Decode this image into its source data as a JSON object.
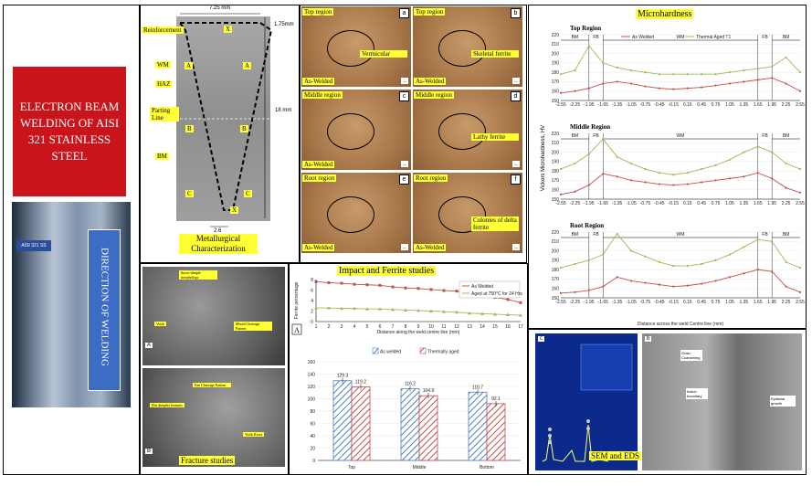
{
  "title_box": {
    "text": "ELECTRON BEAM WELDING OF AISI 321 STAINLESS STEEL",
    "color": "#c8141a"
  },
  "weld_photo": {
    "tag": "AISI 321 SS",
    "arrow_label": "DIRECTION OF WELDING"
  },
  "macro": {
    "width_dim": "7.25 mm",
    "depth_top": "1.75mm",
    "depth_total": "18 mm",
    "root_dim": "2.6",
    "labels": {
      "reinforcement": "Reinforcement",
      "wm": "WM",
      "haz": "HAZ",
      "parting": "Parting Line",
      "bm": "BM"
    },
    "markers": [
      "A",
      "B",
      "C",
      "X"
    ]
  },
  "metallurgical": {
    "caption": "Metallurgical Characterization",
    "panels": [
      {
        "letter": "a",
        "region": "Top region",
        "feature": "Vermicular",
        "state": "As-Welded"
      },
      {
        "letter": "b",
        "region": "Top region",
        "feature": "Skeletal ferrite",
        "state": "As-Welded"
      },
      {
        "letter": "c",
        "region": "Middle region",
        "feature": "",
        "state": "As-Welded"
      },
      {
        "letter": "d",
        "region": "Middle region",
        "feature": "Lathy ferrite",
        "state": ""
      },
      {
        "letter": "e",
        "region": "Root region",
        "feature": "",
        "state": "As-Welded"
      },
      {
        "letter": "f",
        "region": "Root region",
        "feature": "Colonies of delta ferrite",
        "state": "As-Welded"
      }
    ]
  },
  "microhardness": {
    "title": "Microhardness",
    "ylabel": "Vickers Microhardness, HV",
    "xlabel": "Distance across the weld Centre line (mm)",
    "legend": [
      "As Welded",
      "Thermal Aged T1"
    ],
    "colors": {
      "as_welded": "#c0504d",
      "aged": "#9bbb59"
    },
    "zones": {
      "bm": "BM",
      "fb": "FB",
      "wm": "WM"
    }
  },
  "impact": {
    "title": "Impact and Ferrite studies",
    "legend": [
      "As Welded",
      "Aged at 750°C for 24 Hrs"
    ],
    "ylabel": "Ferrite percentage",
    "xlabel": "Distance along the weld centre line (mm)",
    "panel_letter": "A"
  },
  "fracture": {
    "caption": "Fracture studies",
    "labels": [
      "Sucro-dimple morphology",
      "Voids",
      "Mixed Cleavage Pattern",
      "Fan Cleavage Pattern",
      "Flat dimples features",
      "Voids Rows"
    ],
    "letters": [
      "A",
      "B"
    ]
  },
  "sem": {
    "caption": "SEM and EDS",
    "labels": [
      "Grain Coarsening",
      "fusion boundary",
      "Epitaxial growth"
    ],
    "letters": [
      "c",
      "b"
    ]
  },
  "chart_data": [
    {
      "type": "bar",
      "categories": [
        "Top",
        "Middle",
        "Bottom"
      ],
      "series": [
        {
          "name": "As welded",
          "values": [
            129.3,
            116.2,
            110.7
          ]
        },
        {
          "name": "Thermally aged",
          "values": [
            119.2,
            104.9,
            92.1
          ]
        }
      ],
      "ylim": [
        0,
        160
      ],
      "yticks": [
        0,
        20,
        40,
        60,
        80,
        100,
        120,
        140,
        160
      ]
    },
    {
      "type": "line",
      "x": [
        1,
        2,
        3,
        4,
        5,
        6,
        7,
        8,
        9,
        10,
        11,
        12,
        13,
        14,
        15,
        16,
        17
      ],
      "series": [
        {
          "name": "As Welded",
          "values": [
            7.6,
            7.4,
            7.3,
            7.1,
            7.0,
            6.9,
            6.6,
            6.4,
            6.3,
            6.1,
            5.9,
            5.8,
            5.4,
            5.0,
            4.6,
            4.2,
            3.6
          ]
        },
        {
          "name": "Aged at 750°C for 24 Hrs",
          "values": [
            2.6,
            2.6,
            2.5,
            2.5,
            2.4,
            2.4,
            2.3,
            2.2,
            2.1,
            2.0,
            1.9,
            1.8,
            1.6,
            1.5,
            1.4,
            1.3,
            1.2
          ]
        }
      ],
      "ylim": [
        0,
        8
      ]
    },
    {
      "type": "line",
      "panel": "Top Region",
      "x": [
        -2.55,
        -2.25,
        -1.95,
        -1.65,
        -1.35,
        -1.05,
        -0.75,
        -0.45,
        -0.15,
        0.15,
        0.45,
        0.75,
        1.05,
        1.35,
        1.65,
        1.95,
        2.25,
        2.55
      ],
      "xticks": [
        "-2.55",
        "-2.25",
        "-1.95",
        "-1.65",
        "-1.35",
        "-1.05",
        "-0.75",
        "-0.45",
        "-0.15",
        "0.15",
        "0.45",
        "0.75",
        "1.05",
        "1.35",
        "1.65",
        "1.95",
        "2.25",
        "2.55"
      ],
      "ylim": [
        150,
        220
      ],
      "yticks": [
        150,
        160,
        170,
        180,
        190,
        200,
        210,
        220
      ],
      "series": [
        {
          "name": "As Welded",
          "values": [
            158,
            160,
            163,
            168,
            170,
            168,
            165,
            163,
            162,
            163,
            164,
            166,
            168,
            170,
            172,
            174,
            168,
            160
          ]
        },
        {
          "name": "Thermal Aged T1",
          "values": [
            178,
            182,
            208,
            190,
            185,
            182,
            180,
            178,
            178,
            178,
            178,
            178,
            180,
            182,
            184,
            186,
            196,
            180
          ]
        }
      ]
    },
    {
      "type": "line",
      "panel": "Middle Region",
      "x": [
        -2.55,
        -2.25,
        -1.95,
        -1.65,
        -1.35,
        -1.05,
        -0.75,
        -0.45,
        -0.15,
        0.15,
        0.45,
        0.75,
        1.05,
        1.35,
        1.65,
        1.95,
        2.25,
        2.55
      ],
      "xticks": [
        "-2.55",
        "-2.25",
        "-1.95",
        "-1.65",
        "-1.35",
        "-1.05",
        "-0.75",
        "-0.45",
        "-0.15",
        "0.15",
        "0.45",
        "0.75",
        "1.05",
        "1.35",
        "1.65",
        "1.95",
        "2.25",
        "2.55"
      ],
      "ylim": [
        150,
        220
      ],
      "yticks": [
        150,
        160,
        170,
        180,
        190,
        200,
        210,
        220
      ],
      "series": [
        {
          "name": "As Welded",
          "values": [
            155,
            158,
            165,
            177,
            174,
            170,
            168,
            166,
            165,
            166,
            168,
            170,
            172,
            174,
            178,
            172,
            162,
            157
          ]
        },
        {
          "name": "Thermal Aged T1",
          "values": [
            182,
            188,
            198,
            214,
            195,
            188,
            182,
            178,
            176,
            178,
            182,
            186,
            192,
            200,
            206,
            200,
            188,
            182
          ]
        }
      ]
    },
    {
      "type": "line",
      "panel": "Root Region",
      "x": [
        -2.55,
        -2.25,
        -1.95,
        -1.65,
        -1.35,
        -1.05,
        -0.75,
        -0.45,
        -0.15,
        0.15,
        0.45,
        0.75,
        1.05,
        1.35,
        1.65,
        1.95,
        2.25,
        2.55
      ],
      "xticks": [
        "-2.55",
        "-2.25",
        "-1.95",
        "-1.65",
        "-1.35",
        "-1.05",
        "-0.75",
        "-0.45",
        "-0.15",
        "0.15",
        "0.45",
        "0.75",
        "1.05",
        "1.35",
        "1.65",
        "1.95",
        "2.25",
        "2.55"
      ],
      "ylim": [
        150,
        220
      ],
      "yticks": [
        150,
        160,
        170,
        180,
        190,
        200,
        210,
        220
      ],
      "series": [
        {
          "name": "As Welded",
          "values": [
            155,
            156,
            158,
            162,
            172,
            168,
            166,
            164,
            162,
            163,
            165,
            168,
            172,
            176,
            180,
            178,
            162,
            156
          ]
        },
        {
          "name": "Thermal Aged T1",
          "values": [
            182,
            186,
            190,
            196,
            218,
            200,
            194,
            188,
            184,
            184,
            186,
            190,
            196,
            204,
            212,
            210,
            188,
            182
          ]
        }
      ]
    }
  ]
}
